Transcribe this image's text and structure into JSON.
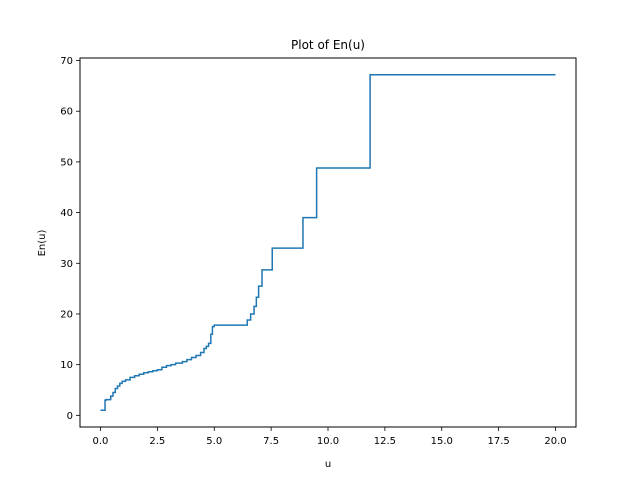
{
  "chart_data": {
    "type": "line",
    "title": "Plot of En(u)",
    "xlabel": "u",
    "ylabel": "En(u)",
    "xlim": [
      -0.9,
      20.9
    ],
    "ylim": [
      -2.3,
      70.5
    ],
    "xticks": [
      0,
      2.5,
      5,
      7.5,
      10,
      12.5,
      15,
      17.5,
      20
    ],
    "xtick_labels": [
      "0.0",
      "2.5",
      "5.0",
      "7.5",
      "10.0",
      "12.5",
      "15.0",
      "17.5",
      "20.0"
    ],
    "yticks": [
      0,
      10,
      20,
      30,
      40,
      50,
      60,
      70
    ],
    "ytick_labels": [
      "0",
      "10",
      "20",
      "30",
      "40",
      "50",
      "60",
      "70"
    ],
    "grid": false,
    "step": "post",
    "series_color": "#1f77b4",
    "series": [
      {
        "x": [
          0.0,
          0.2,
          0.25,
          0.45,
          0.55,
          0.65,
          0.75,
          0.85,
          0.95,
          1.1,
          1.3,
          1.5,
          1.7,
          1.9,
          2.1,
          2.3,
          2.5,
          2.7,
          2.9,
          3.1,
          3.3,
          3.6,
          3.8,
          4.0,
          4.2,
          4.4,
          4.55,
          4.65,
          4.75,
          4.85,
          4.92,
          5.0,
          5.05,
          6.45,
          6.6,
          6.75,
          6.85,
          6.95,
          7.1,
          7.15,
          7.55,
          8.9,
          9.5,
          11.85,
          20.0
        ],
        "y": [
          1.0,
          3.0,
          3.1,
          3.8,
          4.5,
          5.3,
          5.8,
          6.3,
          6.7,
          7.0,
          7.5,
          7.8,
          8.1,
          8.4,
          8.6,
          8.8,
          9.0,
          9.5,
          9.8,
          10.0,
          10.3,
          10.6,
          11.0,
          11.4,
          11.8,
          12.4,
          13.2,
          13.6,
          14.2,
          16.0,
          17.5,
          17.8,
          17.8,
          18.8,
          20.0,
          21.5,
          23.3,
          25.5,
          28.7,
          28.7,
          33.0,
          39.0,
          48.8,
          67.2,
          67.2
        ]
      }
    ]
  }
}
